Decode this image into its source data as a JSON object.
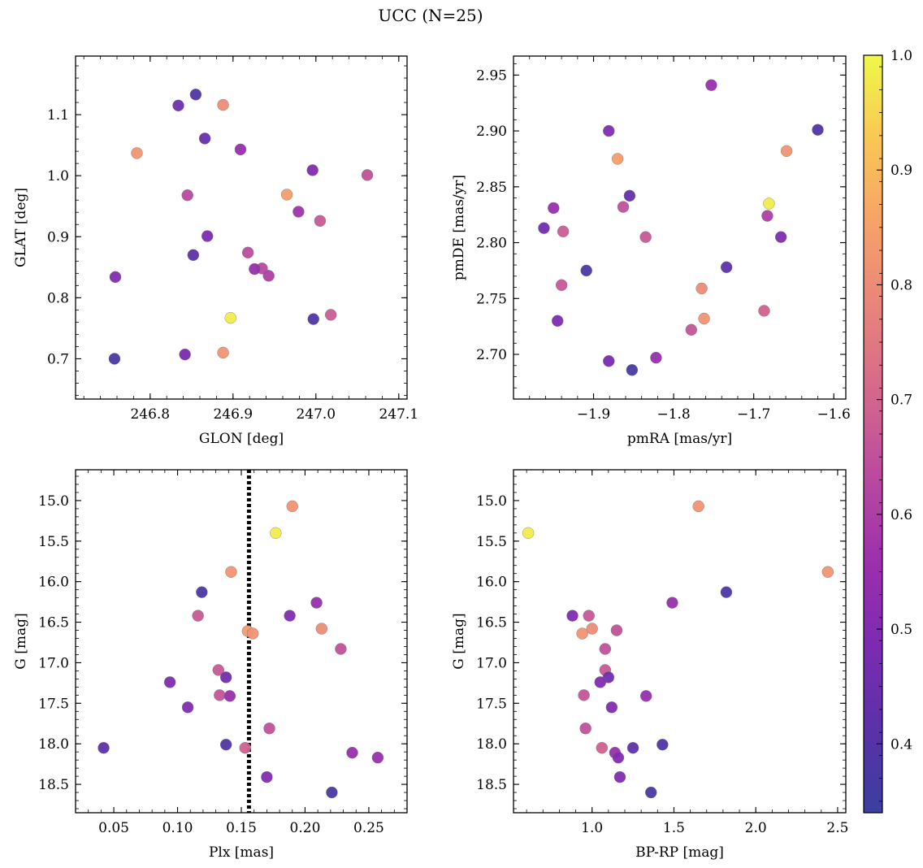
{
  "figure": {
    "title": "UCC (N=25)"
  },
  "colorbar": {
    "range": [
      0.34,
      1.0
    ],
    "ticks": [
      0.4,
      0.5,
      0.6,
      0.7,
      0.8,
      0.9,
      1.0
    ],
    "tick_labels": [
      "0.4",
      "0.5",
      "0.6",
      "0.7",
      "0.8",
      "0.9",
      "1.0"
    ],
    "colormap": "plasma"
  },
  "chart_data": [
    {
      "type": "scatter",
      "title": "",
      "xlabel": "GLON [deg]",
      "ylabel": "GLAT [deg]",
      "xlim": [
        246.71,
        247.11
      ],
      "ylim": [
        0.634,
        1.196
      ],
      "xticks": [
        246.8,
        246.9,
        247.0,
        247.1
      ],
      "xtick_labels": [
        "246.8",
        "246.9",
        "247.0",
        "247.1"
      ],
      "yticks": [
        0.7,
        0.8,
        0.9,
        1.0,
        1.1
      ],
      "ytick_labels": [
        "0.7",
        "0.8",
        "0.9",
        "1.0",
        "1.1"
      ],
      "y_inverted": false,
      "points": [
        {
          "x": 246.855,
          "y": 1.133,
          "c": 0.38
        },
        {
          "x": 246.834,
          "y": 1.115,
          "c": 0.46
        },
        {
          "x": 246.888,
          "y": 1.116,
          "c": 0.8
        },
        {
          "x": 246.866,
          "y": 1.061,
          "c": 0.44
        },
        {
          "x": 246.784,
          "y": 1.037,
          "c": 0.82
        },
        {
          "x": 246.909,
          "y": 1.043,
          "c": 0.55
        },
        {
          "x": 246.996,
          "y": 1.009,
          "c": 0.5
        },
        {
          "x": 247.062,
          "y": 1.001,
          "c": 0.65
        },
        {
          "x": 246.845,
          "y": 0.968,
          "c": 0.63
        },
        {
          "x": 246.965,
          "y": 0.969,
          "c": 0.84
        },
        {
          "x": 246.979,
          "y": 0.941,
          "c": 0.57
        },
        {
          "x": 247.005,
          "y": 0.926,
          "c": 0.67
        },
        {
          "x": 246.869,
          "y": 0.901,
          "c": 0.49
        },
        {
          "x": 246.918,
          "y": 0.874,
          "c": 0.64
        },
        {
          "x": 246.852,
          "y": 0.87,
          "c": 0.42
        },
        {
          "x": 246.935,
          "y": 0.848,
          "c": 0.63
        },
        {
          "x": 246.926,
          "y": 0.847,
          "c": 0.55
        },
        {
          "x": 246.943,
          "y": 0.836,
          "c": 0.6
        },
        {
          "x": 246.758,
          "y": 0.834,
          "c": 0.5
        },
        {
          "x": 246.897,
          "y": 0.767,
          "c": 0.98
        },
        {
          "x": 246.997,
          "y": 0.765,
          "c": 0.39
        },
        {
          "x": 247.018,
          "y": 0.772,
          "c": 0.68
        },
        {
          "x": 246.757,
          "y": 0.7,
          "c": 0.37
        },
        {
          "x": 246.842,
          "y": 0.707,
          "c": 0.48
        },
        {
          "x": 246.888,
          "y": 0.71,
          "c": 0.82
        }
      ]
    },
    {
      "type": "scatter",
      "title": "",
      "xlabel": "pmRA [mas/yr]",
      "ylabel": "pmDE [mas/yr]",
      "xlim": [
        -2.0,
        -1.585
      ],
      "ylim": [
        2.66,
        2.967
      ],
      "xticks": [
        -1.9,
        -1.8,
        -1.7,
        -1.6
      ],
      "xtick_labels": [
        "−1.9",
        "−1.8",
        "−1.7",
        "−1.6"
      ],
      "yticks": [
        2.7,
        2.75,
        2.8,
        2.85,
        2.9,
        2.95
      ],
      "ytick_labels": [
        "2.70",
        "2.75",
        "2.80",
        "2.85",
        "2.90",
        "2.95"
      ],
      "y_inverted": false,
      "points": [
        {
          "x": -1.753,
          "y": 2.941,
          "c": 0.55
        },
        {
          "x": -1.881,
          "y": 2.9,
          "c": 0.5
        },
        {
          "x": -1.62,
          "y": 2.901,
          "c": 0.39
        },
        {
          "x": -1.659,
          "y": 2.882,
          "c": 0.82
        },
        {
          "x": -1.87,
          "y": 2.875,
          "c": 0.84
        },
        {
          "x": -1.855,
          "y": 2.842,
          "c": 0.44
        },
        {
          "x": -1.681,
          "y": 2.835,
          "c": 0.98
        },
        {
          "x": -1.95,
          "y": 2.831,
          "c": 0.55
        },
        {
          "x": -1.863,
          "y": 2.832,
          "c": 0.65
        },
        {
          "x": -1.683,
          "y": 2.824,
          "c": 0.6
        },
        {
          "x": -1.962,
          "y": 2.813,
          "c": 0.46
        },
        {
          "x": -1.938,
          "y": 2.81,
          "c": 0.68
        },
        {
          "x": -1.666,
          "y": 2.805,
          "c": 0.5
        },
        {
          "x": -1.835,
          "y": 2.805,
          "c": 0.67
        },
        {
          "x": -1.909,
          "y": 2.775,
          "c": 0.38
        },
        {
          "x": -1.734,
          "y": 2.778,
          "c": 0.42
        },
        {
          "x": -1.94,
          "y": 2.762,
          "c": 0.67
        },
        {
          "x": -1.765,
          "y": 2.759,
          "c": 0.8
        },
        {
          "x": -1.945,
          "y": 2.73,
          "c": 0.49
        },
        {
          "x": -1.762,
          "y": 2.732,
          "c": 0.82
        },
        {
          "x": -1.687,
          "y": 2.739,
          "c": 0.69
        },
        {
          "x": -1.778,
          "y": 2.722,
          "c": 0.66
        },
        {
          "x": -1.822,
          "y": 2.697,
          "c": 0.55
        },
        {
          "x": -1.881,
          "y": 2.694,
          "c": 0.48
        },
        {
          "x": -1.852,
          "y": 2.686,
          "c": 0.37
        }
      ]
    },
    {
      "type": "scatter",
      "title": "",
      "xlabel": "Plx [mas]",
      "ylabel": "G [mag]",
      "xlim": [
        0.02,
        0.28
      ],
      "ylim": [
        18.85,
        14.62
      ],
      "xticks": [
        0.05,
        0.1,
        0.15,
        0.2,
        0.25
      ],
      "xtick_labels": [
        "0.05",
        "0.10",
        "0.15",
        "0.20",
        "0.25"
      ],
      "yticks": [
        15.0,
        15.5,
        16.0,
        16.5,
        17.0,
        17.5,
        18.0,
        18.5
      ],
      "ytick_labels": [
        "15.0",
        "15.5",
        "16.0",
        "16.5",
        "17.0",
        "17.5",
        "18.0",
        "18.5"
      ],
      "y_inverted": true,
      "vline": {
        "x": 0.156,
        "style": "dotted",
        "color": "#000000"
      },
      "points": [
        {
          "x": 0.19,
          "y": 15.07,
          "c": 0.82
        },
        {
          "x": 0.177,
          "y": 15.4,
          "c": 0.98
        },
        {
          "x": 0.142,
          "y": 15.88,
          "c": 0.82
        },
        {
          "x": 0.119,
          "y": 16.13,
          "c": 0.38
        },
        {
          "x": 0.209,
          "y": 16.26,
          "c": 0.55
        },
        {
          "x": 0.116,
          "y": 16.42,
          "c": 0.67
        },
        {
          "x": 0.188,
          "y": 16.42,
          "c": 0.5
        },
        {
          "x": 0.213,
          "y": 16.58,
          "c": 0.8
        },
        {
          "x": 0.155,
          "y": 16.61,
          "c": 0.84
        },
        {
          "x": 0.159,
          "y": 16.64,
          "c": 0.82
        },
        {
          "x": 0.228,
          "y": 16.83,
          "c": 0.65
        },
        {
          "x": 0.132,
          "y": 17.09,
          "c": 0.67
        },
        {
          "x": 0.138,
          "y": 17.18,
          "c": 0.46
        },
        {
          "x": 0.094,
          "y": 17.24,
          "c": 0.5
        },
        {
          "x": 0.133,
          "y": 17.4,
          "c": 0.66
        },
        {
          "x": 0.141,
          "y": 17.41,
          "c": 0.55
        },
        {
          "x": 0.108,
          "y": 17.55,
          "c": 0.5
        },
        {
          "x": 0.172,
          "y": 17.81,
          "c": 0.65
        },
        {
          "x": 0.138,
          "y": 18.01,
          "c": 0.39
        },
        {
          "x": 0.042,
          "y": 18.05,
          "c": 0.42
        },
        {
          "x": 0.153,
          "y": 18.05,
          "c": 0.69
        },
        {
          "x": 0.237,
          "y": 18.11,
          "c": 0.55
        },
        {
          "x": 0.257,
          "y": 18.17,
          "c": 0.55
        },
        {
          "x": 0.17,
          "y": 18.41,
          "c": 0.5
        },
        {
          "x": 0.221,
          "y": 18.6,
          "c": 0.37
        }
      ]
    },
    {
      "type": "scatter",
      "title": "",
      "xlabel": "BP-RP [mag]",
      "ylabel": "G [mag]",
      "xlim": [
        0.52,
        2.55
      ],
      "ylim": [
        18.85,
        14.62
      ],
      "xticks": [
        1.0,
        1.5,
        2.0,
        2.5
      ],
      "xtick_labels": [
        "1.0",
        "1.5",
        "2.0",
        "2.5"
      ],
      "yticks": [
        15.0,
        15.5,
        16.0,
        16.5,
        17.0,
        17.5,
        18.0,
        18.5
      ],
      "ytick_labels": [
        "15.0",
        "15.5",
        "16.0",
        "16.5",
        "17.0",
        "17.5",
        "18.0",
        "18.5"
      ],
      "y_inverted": true,
      "points": [
        {
          "x": 1.65,
          "y": 15.07,
          "c": 0.82
        },
        {
          "x": 0.61,
          "y": 15.4,
          "c": 0.98
        },
        {
          "x": 2.44,
          "y": 15.88,
          "c": 0.82
        },
        {
          "x": 1.82,
          "y": 16.13,
          "c": 0.38
        },
        {
          "x": 1.49,
          "y": 16.26,
          "c": 0.55
        },
        {
          "x": 0.98,
          "y": 16.42,
          "c": 0.67
        },
        {
          "x": 0.88,
          "y": 16.42,
          "c": 0.5
        },
        {
          "x": 1.0,
          "y": 16.58,
          "c": 0.8
        },
        {
          "x": 1.15,
          "y": 16.6,
          "c": 0.65
        },
        {
          "x": 0.94,
          "y": 16.64,
          "c": 0.82
        },
        {
          "x": 1.08,
          "y": 16.83,
          "c": 0.65
        },
        {
          "x": 1.08,
          "y": 17.09,
          "c": 0.67
        },
        {
          "x": 1.1,
          "y": 17.18,
          "c": 0.46
        },
        {
          "x": 1.05,
          "y": 17.24,
          "c": 0.5
        },
        {
          "x": 0.95,
          "y": 17.4,
          "c": 0.66
        },
        {
          "x": 1.33,
          "y": 17.41,
          "c": 0.55
        },
        {
          "x": 1.12,
          "y": 17.55,
          "c": 0.5
        },
        {
          "x": 0.96,
          "y": 17.81,
          "c": 0.65
        },
        {
          "x": 1.43,
          "y": 18.01,
          "c": 0.39
        },
        {
          "x": 1.25,
          "y": 18.05,
          "c": 0.42
        },
        {
          "x": 1.06,
          "y": 18.05,
          "c": 0.69
        },
        {
          "x": 1.14,
          "y": 18.11,
          "c": 0.55
        },
        {
          "x": 1.16,
          "y": 18.17,
          "c": 0.5
        },
        {
          "x": 1.17,
          "y": 18.41,
          "c": 0.5
        },
        {
          "x": 1.36,
          "y": 18.6,
          "c": 0.37
        }
      ]
    }
  ]
}
